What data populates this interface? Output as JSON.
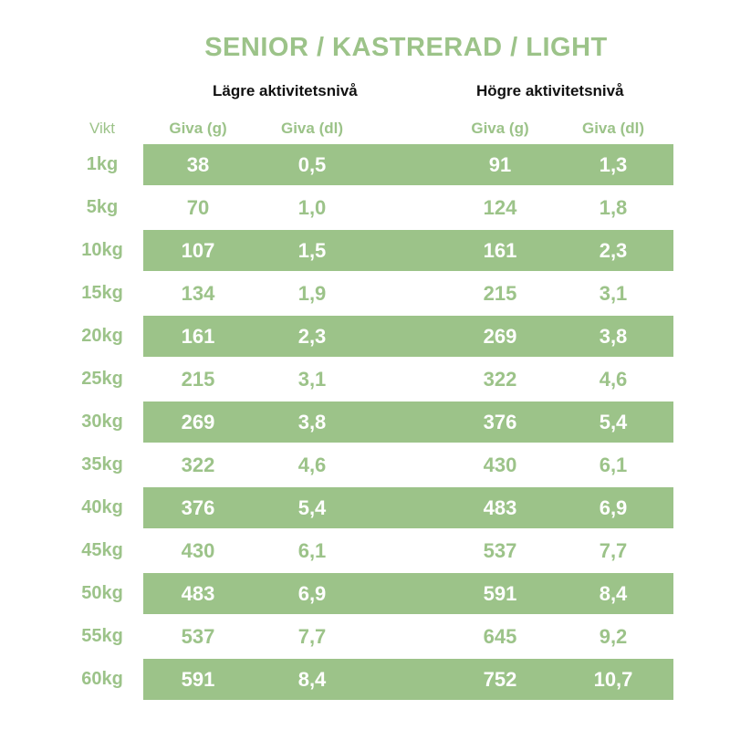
{
  "title": "SENIOR / KASTRERAD / LIGHT",
  "groups": {
    "low": "Lägre aktivitetsnivå",
    "high": "Högre aktivitetsnivå"
  },
  "headers": {
    "vikt": "Vikt",
    "low_g": "Giva (g)",
    "low_dl": "Giva (dl)",
    "high_g": "Giva (g)",
    "high_dl": "Giva (dl)"
  },
  "colors": {
    "accent": "#9cc389",
    "band_text": "#ffffff"
  },
  "rows": [
    {
      "vikt": "1kg",
      "low_g": "38",
      "low_dl": "0,5",
      "high_g": "91",
      "high_dl": "1,3",
      "shaded": true
    },
    {
      "vikt": "5kg",
      "low_g": "70",
      "low_dl": "1,0",
      "high_g": "124",
      "high_dl": "1,8",
      "shaded": false
    },
    {
      "vikt": "10kg",
      "low_g": "107",
      "low_dl": "1,5",
      "high_g": "161",
      "high_dl": "2,3",
      "shaded": true
    },
    {
      "vikt": "15kg",
      "low_g": "134",
      "low_dl": "1,9",
      "high_g": "215",
      "high_dl": "3,1",
      "shaded": false
    },
    {
      "vikt": "20kg",
      "low_g": "161",
      "low_dl": "2,3",
      "high_g": "269",
      "high_dl": "3,8",
      "shaded": true
    },
    {
      "vikt": "25kg",
      "low_g": "215",
      "low_dl": "3,1",
      "high_g": "322",
      "high_dl": "4,6",
      "shaded": false
    },
    {
      "vikt": "30kg",
      "low_g": "269",
      "low_dl": "3,8",
      "high_g": "376",
      "high_dl": "5,4",
      "shaded": true
    },
    {
      "vikt": "35kg",
      "low_g": "322",
      "low_dl": "4,6",
      "high_g": "430",
      "high_dl": "6,1",
      "shaded": false
    },
    {
      "vikt": "40kg",
      "low_g": "376",
      "low_dl": "5,4",
      "high_g": "483",
      "high_dl": "6,9",
      "shaded": true
    },
    {
      "vikt": "45kg",
      "low_g": "430",
      "low_dl": "6,1",
      "high_g": "537",
      "high_dl": "7,7",
      "shaded": false
    },
    {
      "vikt": "50kg",
      "low_g": "483",
      "low_dl": "6,9",
      "high_g": "591",
      "high_dl": "8,4",
      "shaded": true
    },
    {
      "vikt": "55kg",
      "low_g": "537",
      "low_dl": "7,7",
      "high_g": "645",
      "high_dl": "9,2",
      "shaded": false
    },
    {
      "vikt": "60kg",
      "low_g": "591",
      "low_dl": "8,4",
      "high_g": "752",
      "high_dl": "10,7",
      "shaded": true
    }
  ]
}
